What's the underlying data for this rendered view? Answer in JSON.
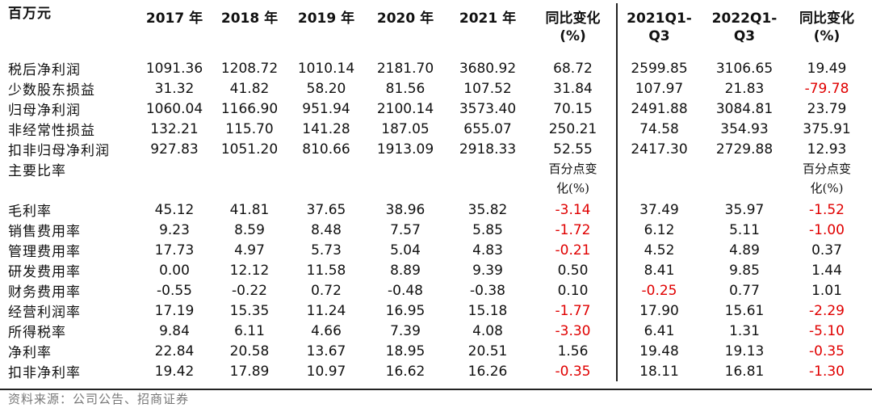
{
  "header": {
    "unit": "百万元",
    "cols": [
      "2017 年",
      "2018 年",
      "2019 年",
      "2020 年",
      "2021 年",
      "同比变化\n(%)",
      "2021Q1-\nQ3",
      "2022Q1-\nQ3",
      "同比变化\n(%)"
    ]
  },
  "rows_top": [
    {
      "label": "税后净利润",
      "values": [
        "1091.36",
        "1208.72",
        "1010.14",
        "2181.70",
        "3680.92",
        "68.72",
        "2599.85",
        "3106.65",
        "19.49"
      ]
    },
    {
      "label": "少数股东损益",
      "values": [
        "31.32",
        "41.82",
        "58.20",
        "81.56",
        "107.52",
        "31.84",
        "107.97",
        "21.83",
        "-79.78"
      ]
    },
    {
      "label": "归母净利润",
      "values": [
        "1060.04",
        "1166.90",
        "951.94",
        "2100.14",
        "3573.40",
        "70.15",
        "2491.88",
        "3084.81",
        "23.79"
      ]
    },
    {
      "label": "非经常性损益",
      "values": [
        "132.21",
        "115.70",
        "141.28",
        "187.05",
        "655.07",
        "250.21",
        "74.58",
        "354.93",
        "375.91"
      ]
    },
    {
      "label": "扣非归母净利润",
      "values": [
        "927.83",
        "1051.20",
        "810.66",
        "1913.09",
        "2918.33",
        "52.55",
        "2417.30",
        "2729.88",
        "12.93"
      ]
    }
  ],
  "ratio_section": {
    "label": "主要比率",
    "note_a": "百分点变\n化(%)",
    "note_b": "百分点变\n化(%)"
  },
  "rows_bottom": [
    {
      "label": "毛利率",
      "values": [
        "45.12",
        "41.81",
        "37.65",
        "38.96",
        "35.82",
        "-3.14",
        "37.49",
        "35.97",
        "-1.52"
      ]
    },
    {
      "label": "销售费用率",
      "values": [
        "9.23",
        "8.59",
        "8.48",
        "7.57",
        "5.85",
        "-1.72",
        "6.12",
        "5.11",
        "-1.00"
      ]
    },
    {
      "label": "管理费用率",
      "values": [
        "17.73",
        "4.97",
        "5.73",
        "5.04",
        "4.83",
        "-0.21",
        "4.52",
        "4.89",
        "0.37"
      ]
    },
    {
      "label": "研发费用率",
      "values": [
        "0.00",
        "12.12",
        "11.58",
        "8.89",
        "9.39",
        "0.50",
        "8.41",
        "9.85",
        "1.44"
      ]
    },
    {
      "label": "财务费用率",
      "values": [
        "-0.55",
        "-0.22",
        "0.72",
        "-0.48",
        "-0.38",
        "0.10",
        "-0.25",
        "0.77",
        "1.01"
      ]
    },
    {
      "label": "经营利润率",
      "values": [
        "17.19",
        "15.35",
        "11.24",
        "16.95",
        "15.18",
        "-1.77",
        "17.90",
        "15.61",
        "-2.29"
      ]
    },
    {
      "label": "所得税率",
      "values": [
        "9.84",
        "6.11",
        "4.66",
        "7.39",
        "4.08",
        "-3.30",
        "6.41",
        "1.31",
        "-5.10"
      ]
    },
    {
      "label": "净利率",
      "values": [
        "22.84",
        "20.58",
        "13.67",
        "18.95",
        "20.51",
        "1.56",
        "19.48",
        "19.13",
        "-0.35"
      ]
    },
    {
      "label": "扣非净利率",
      "values": [
        "19.42",
        "17.89",
        "10.97",
        "16.62",
        "16.26",
        "-0.35",
        "18.11",
        "16.81",
        "-1.30"
      ]
    }
  ],
  "colors": {
    "negative": "#e00000",
    "text": "#111111"
  },
  "source_note": "资料来源：公司公告、招商证券"
}
